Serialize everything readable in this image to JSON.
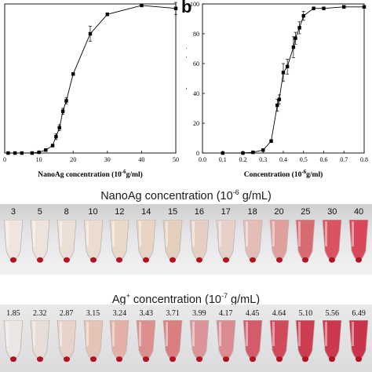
{
  "chart_data": [
    {
      "type": "line",
      "panel": "a",
      "xlabel": "NanoAg concentration (10",
      "xlabel_sup": "-6",
      "xlabel_tail": "g/ml)",
      "ylabel": "",
      "xlim": [
        0,
        50
      ],
      "ylim": [
        0,
        100
      ],
      "x_ticks": [
        "0",
        "10",
        "20",
        "30",
        "40",
        "50"
      ],
      "series": [
        {
          "x": [
            1,
            3,
            5,
            8,
            10,
            12,
            14,
            15,
            16,
            17,
            18,
            20,
            25,
            30,
            40,
            50
          ],
          "y": [
            0,
            0,
            0,
            0,
            0.5,
            2,
            5,
            11,
            17,
            28,
            35,
            53,
            80,
            93,
            99,
            97
          ],
          "err": [
            0,
            0,
            0,
            0,
            0,
            0,
            0,
            2,
            2,
            2,
            2,
            0,
            5,
            1,
            0,
            4
          ]
        }
      ]
    },
    {
      "type": "line",
      "panel": "b",
      "xlabel": "Concentration (10",
      "xlabel_sup": "-6",
      "xlabel_tail": "g/ml)",
      "ylabel": "Hemolysis ratio (%)",
      "xlim": [
        0.0,
        0.8
      ],
      "ylim": [
        0,
        100
      ],
      "x_ticks": [
        "0.0",
        "0.1",
        "0.2",
        "0.3",
        "0.4",
        "0.5",
        "0.6",
        "0.7",
        "0.8"
      ],
      "y_ticks": [
        "0",
        "20",
        "40",
        "60",
        "80",
        "100"
      ],
      "series": [
        {
          "x": [
            0.1,
            0.2,
            0.25,
            0.3,
            0.34,
            0.37,
            0.38,
            0.4,
            0.42,
            0.45,
            0.46,
            0.48,
            0.5,
            0.55,
            0.6,
            0.7,
            0.8
          ],
          "y": [
            0,
            0,
            0.5,
            2,
            8,
            32,
            36,
            54,
            58,
            71,
            77,
            84,
            92,
            97,
            97,
            98,
            98
          ],
          "err": [
            0,
            0,
            0,
            0,
            1,
            4,
            3,
            6,
            5,
            7,
            4,
            4,
            3,
            0,
            0,
            1,
            0
          ]
        }
      ]
    }
  ],
  "panel_b_label": "b",
  "photo1": {
    "title": "NanoAg concentration (10",
    "title_sup": "-6",
    "title_tail": " g/mL)",
    "labels": [
      "3",
      "5",
      "8",
      "10",
      "12",
      "14",
      "15",
      "16",
      "17",
      "18",
      "20",
      "25",
      "30",
      "40"
    ],
    "fill_colors": [
      "#efe4e0",
      "#eee2dc",
      "#ece0d6",
      "#eadcd0",
      "#e8d8c8",
      "#e7d4c2",
      "#e4cfbc",
      "#e6cfc2",
      "#e6d0c8",
      "#e3bdb6",
      "#df9f9c",
      "#d86a72",
      "#d95363",
      "#d8485a"
    ]
  },
  "photo2": {
    "title": "Ag",
    "title_sup": "+",
    "title_tail": " concentration (10",
    "title_sup2": "-7",
    "title_tail2": " g/mL)",
    "labels": [
      "1.85",
      "2.32",
      "2.87",
      "3.15",
      "3.24",
      "3.43",
      "3.71",
      "3.99",
      "4.17",
      "4.45",
      "4.64",
      "5.10",
      "5.56",
      "6.49"
    ],
    "fill_colors": [
      "#eae6e4",
      "#e6ddd8",
      "#e6d2c8",
      "#e4c4b6",
      "#e2b0a6",
      "#dd8f8f",
      "#db7e82",
      "#dd9498",
      "#da8c90",
      "#d45c6a",
      "#d04a5c",
      "#cd3d52",
      "#cc3850",
      "#ca334c"
    ]
  }
}
